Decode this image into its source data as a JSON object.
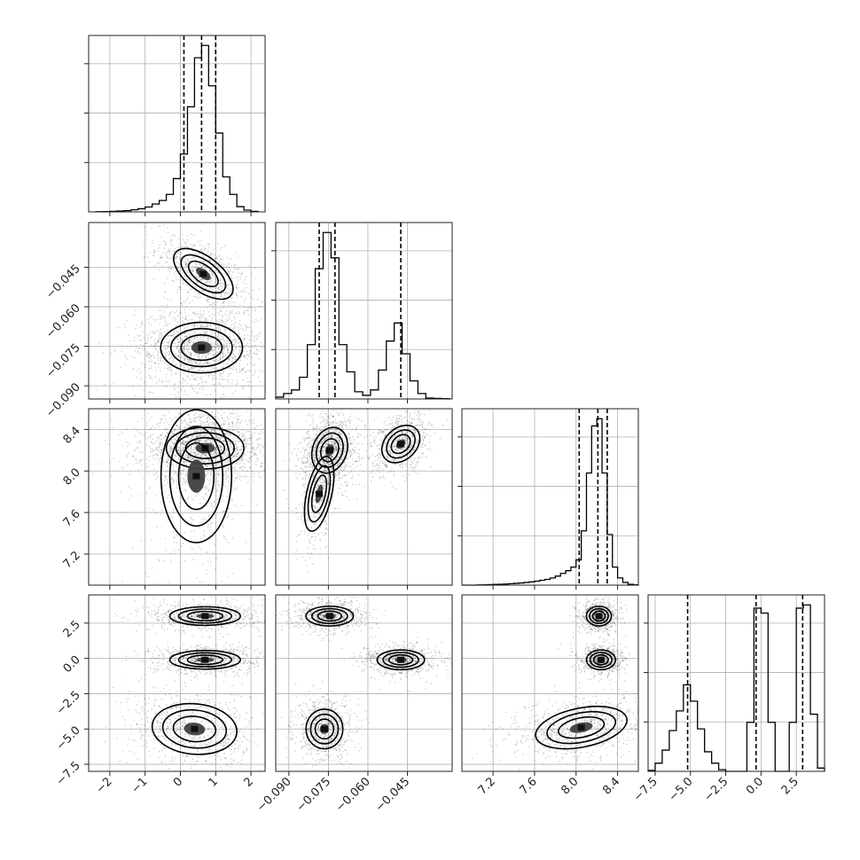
{
  "chart_data": {
    "type": "corner",
    "title": "",
    "grid": true,
    "quantiles": [
      0.16,
      0.5,
      0.84
    ],
    "params": [
      {
        "range": [
          -2.6,
          2.4
        ],
        "ticks": [
          -2,
          -1,
          0,
          1,
          2
        ],
        "tick_labels": [
          "−2",
          "−1",
          "0",
          "1",
          "2"
        ],
        "quantile_values": [
          0.1,
          0.6,
          1.0
        ],
        "hist": [
          [
            -2.3,
            0.001
          ],
          [
            -2.1,
            0.002
          ],
          [
            -1.9,
            0.003
          ],
          [
            -1.7,
            0.005
          ],
          [
            -1.5,
            0.007
          ],
          [
            -1.3,
            0.012
          ],
          [
            -1.1,
            0.018
          ],
          [
            -0.9,
            0.028
          ],
          [
            -0.7,
            0.045
          ],
          [
            -0.5,
            0.065
          ],
          [
            -0.3,
            0.1
          ],
          [
            -0.1,
            0.19
          ],
          [
            0.1,
            0.33
          ],
          [
            0.3,
            0.6
          ],
          [
            0.5,
            0.88
          ],
          [
            0.7,
            0.95
          ],
          [
            0.9,
            0.72
          ],
          [
            1.1,
            0.45
          ],
          [
            1.3,
            0.2
          ],
          [
            1.5,
            0.1
          ],
          [
            1.7,
            0.03
          ],
          [
            1.9,
            0.01
          ],
          [
            2.1,
            0.003
          ]
        ]
      },
      {
        "range": [
          -0.095,
          -0.028
        ],
        "ticks": [
          -0.09,
          -0.075,
          -0.06,
          -0.045
        ],
        "tick_labels": [
          "−0.090",
          "−0.075",
          "−0.060",
          "−0.045"
        ],
        "quantile_values": [
          -0.0785,
          -0.0725,
          -0.0475
        ],
        "hist": [
          [
            -0.0935,
            0.01
          ],
          [
            -0.0905,
            0.03
          ],
          [
            -0.0875,
            0.05
          ],
          [
            -0.0845,
            0.12
          ],
          [
            -0.0815,
            0.3
          ],
          [
            -0.0785,
            0.72
          ],
          [
            -0.0755,
            0.92
          ],
          [
            -0.0725,
            0.78
          ],
          [
            -0.0695,
            0.3
          ],
          [
            -0.0665,
            0.15
          ],
          [
            -0.0635,
            0.04
          ],
          [
            -0.0605,
            0.02
          ],
          [
            -0.0575,
            0.05
          ],
          [
            -0.0545,
            0.16
          ],
          [
            -0.0515,
            0.32
          ],
          [
            -0.0485,
            0.42
          ],
          [
            -0.0455,
            0.25
          ],
          [
            -0.0425,
            0.1
          ],
          [
            -0.0395,
            0.03
          ],
          [
            -0.0365,
            0.005
          ],
          [
            -0.0335,
            0.003
          ],
          [
            -0.0305,
            0.002
          ]
        ]
      },
      {
        "range": [
          6.9,
          8.6
        ],
        "ticks": [
          7.2,
          7.6,
          8.0,
          8.4
        ],
        "tick_labels": [
          "7.2",
          "7.6",
          "8.0",
          "8.4"
        ],
        "quantile_values": [
          8.03,
          8.21,
          8.3
        ],
        "hist": [
          [
            6.925,
            0.0
          ],
          [
            6.975,
            0.0
          ],
          [
            7.025,
            0.0
          ],
          [
            7.075,
            0.001
          ],
          [
            7.125,
            0.002
          ],
          [
            7.175,
            0.003
          ],
          [
            7.225,
            0.004
          ],
          [
            7.275,
            0.005
          ],
          [
            7.325,
            0.006
          ],
          [
            7.375,
            0.008
          ],
          [
            7.425,
            0.01
          ],
          [
            7.475,
            0.012
          ],
          [
            7.525,
            0.015
          ],
          [
            7.575,
            0.018
          ],
          [
            7.625,
            0.022
          ],
          [
            7.675,
            0.027
          ],
          [
            7.725,
            0.032
          ],
          [
            7.775,
            0.04
          ],
          [
            7.825,
            0.05
          ],
          [
            7.875,
            0.065
          ],
          [
            7.925,
            0.08
          ],
          [
            7.975,
            0.1
          ],
          [
            8.025,
            0.14
          ],
          [
            8.075,
            0.3
          ],
          [
            8.125,
            0.62
          ],
          [
            8.175,
            0.88
          ],
          [
            8.225,
            0.92
          ],
          [
            8.275,
            0.62
          ],
          [
            8.325,
            0.28
          ],
          [
            8.375,
            0.1
          ],
          [
            8.425,
            0.04
          ],
          [
            8.475,
            0.015
          ],
          [
            8.525,
            0.005
          ],
          [
            8.575,
            0.002
          ]
        ]
      },
      {
        "range": [
          -8.0,
          4.5
        ],
        "ticks": [
          -7.5,
          -5.0,
          -2.5,
          0.0,
          2.5
        ],
        "tick_labels": [
          "−7.5",
          "−5.0",
          "−2.5",
          "0.0",
          "2.5"
        ],
        "quantile_values": [
          -5.2,
          -0.35,
          2.95
        ],
        "hist": [
          [
            -7.75,
            0.005
          ],
          [
            -7.25,
            0.05
          ],
          [
            -6.75,
            0.13
          ],
          [
            -6.25,
            0.25
          ],
          [
            -5.75,
            0.37
          ],
          [
            -5.25,
            0.53
          ],
          [
            -4.75,
            0.43
          ],
          [
            -4.25,
            0.26
          ],
          [
            -3.75,
            0.12
          ],
          [
            -3.25,
            0.05
          ],
          [
            -2.75,
            0.01
          ],
          [
            -2.25,
            0.0
          ],
          [
            -1.75,
            0.0
          ],
          [
            -1.25,
            0.0
          ],
          [
            -0.75,
            0.3
          ],
          [
            -0.25,
            1.0
          ],
          [
            0.25,
            0.97
          ],
          [
            0.75,
            0.3
          ],
          [
            1.25,
            0.0
          ],
          [
            1.75,
            0.0
          ],
          [
            2.25,
            0.3
          ],
          [
            2.75,
            1.0
          ],
          [
            3.25,
            1.02
          ],
          [
            3.75,
            0.35
          ],
          [
            4.25,
            0.02
          ]
        ]
      }
    ],
    "pairs": [
      {
        "x": 0,
        "y": 1,
        "clusters": [
          {
            "cx": 0.65,
            "cy": -0.0475,
            "sx": 0.42,
            "sy": 0.0048,
            "rho": -0.6,
            "weight": 0.33
          },
          {
            "cx": 0.6,
            "cy": -0.0755,
            "sx": 0.58,
            "sy": 0.0048,
            "rho": 0.0,
            "weight": 0.67
          }
        ]
      },
      {
        "x": 0,
        "y": 2,
        "clusters": [
          {
            "cx": 0.7,
            "cy": 8.22,
            "sx": 0.55,
            "sy": 0.1,
            "rho": 0.0,
            "weight": 0.8
          },
          {
            "cx": 0.45,
            "cy": 7.95,
            "sx": 0.5,
            "sy": 0.32,
            "rho": 0.0,
            "weight": 0.2
          }
        ]
      },
      {
        "x": 0,
        "y": 3,
        "clusters": [
          {
            "cx": 0.7,
            "cy": 3.0,
            "sx": 0.5,
            "sy": 0.33,
            "rho": 0.0,
            "weight": 0.33
          },
          {
            "cx": 0.7,
            "cy": -0.1,
            "sx": 0.5,
            "sy": 0.33,
            "rho": 0.0,
            "weight": 0.33
          },
          {
            "cx": 0.4,
            "cy": -5.0,
            "sx": 0.6,
            "sy": 0.9,
            "rho": -0.1,
            "weight": 0.34
          }
        ]
      },
      {
        "x": 1,
        "y": 2,
        "clusters": [
          {
            "cx": -0.0745,
            "cy": 8.2,
            "sx": 0.0034,
            "sy": 0.11,
            "rho": 0.2,
            "weight": 0.5
          },
          {
            "cx": -0.0785,
            "cy": 7.78,
            "sx": 0.0028,
            "sy": 0.18,
            "rho": 0.5,
            "weight": 0.18
          },
          {
            "cx": -0.0475,
            "cy": 8.26,
            "sx": 0.0036,
            "sy": 0.09,
            "rho": 0.3,
            "weight": 0.32
          }
        ]
      },
      {
        "x": 1,
        "y": 3,
        "clusters": [
          {
            "cx": -0.0745,
            "cy": 3.0,
            "sx": 0.0045,
            "sy": 0.35,
            "rho": 0.0,
            "weight": 0.33
          },
          {
            "cx": -0.0475,
            "cy": -0.1,
            "sx": 0.0045,
            "sy": 0.35,
            "rho": 0.0,
            "weight": 0.33
          },
          {
            "cx": -0.0765,
            "cy": -5.0,
            "sx": 0.0035,
            "sy": 0.7,
            "rho": 0.0,
            "weight": 0.34
          }
        ]
      },
      {
        "x": 2,
        "y": 3,
        "clusters": [
          {
            "cx": 8.22,
            "cy": 3.0,
            "sx": 0.06,
            "sy": 0.35,
            "rho": 0.0,
            "weight": 0.3
          },
          {
            "cx": 8.24,
            "cy": -0.1,
            "sx": 0.07,
            "sy": 0.35,
            "rho": 0.0,
            "weight": 0.3
          },
          {
            "cx": 8.05,
            "cy": -4.9,
            "sx": 0.22,
            "sy": 0.75,
            "rho": 0.35,
            "weight": 0.4
          }
        ]
      }
    ]
  }
}
